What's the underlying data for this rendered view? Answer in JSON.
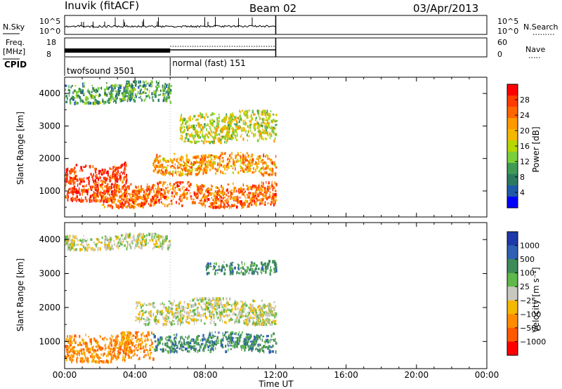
{
  "header": {
    "station": "Inuvik (fitACF)",
    "beam": "Beam 02",
    "date": "03/Apr/2013"
  },
  "noise_panel": {
    "left_label": "N.Sky",
    "right_label": "N.Search",
    "left_ticks": [
      "10^5",
      "10^0"
    ],
    "right_ticks": [
      "10^5",
      "10^0"
    ]
  },
  "freq_panel": {
    "left_label_1": "Freq.",
    "left_label_2": "[MHz]",
    "left_ticks": [
      "18",
      "8"
    ],
    "right_label": "Nave",
    "right_ticks": [
      "60",
      "0"
    ]
  },
  "cpid": {
    "label": "CPID",
    "segments": [
      {
        "name": "twofsound 3501",
        "start_hour": 0,
        "end_hour": 6
      },
      {
        "name": "normal (fast) 151",
        "start_hour": 6,
        "end_hour": 12
      }
    ]
  },
  "x_axis": {
    "label": "Time UT",
    "ticks": [
      "00:00",
      "04:00",
      "08:00",
      "12:00",
      "16:00",
      "20:00",
      "00:00"
    ]
  },
  "power_colorbar": {
    "label": "Power [dB]",
    "ticks": [
      "28",
      "24",
      "20",
      "16",
      "12",
      "8",
      "4"
    ],
    "colors": [
      "#ff0000",
      "#ff3c00",
      "#ff6600",
      "#ff9900",
      "#f5b800",
      "#b8d600",
      "#7ccf3c",
      "#3e9a54",
      "#2c7a5e",
      "#1f5aa8",
      "#0000ff"
    ]
  },
  "velocity_colorbar": {
    "label": "Velocity [m s⁻¹]",
    "ticks": [
      "1000",
      "500",
      "100",
      "25",
      "−25",
      "−100",
      "−500",
      "−1000"
    ],
    "colors": [
      "#1e3aa8",
      "#2e5fb4",
      "#3e8a5a",
      "#5fb84a",
      "#c8c8c0",
      "#f5b800",
      "#ff8c00",
      "#ff5a00",
      "#ff0000"
    ]
  },
  "chart_data": [
    {
      "type": "heatmap",
      "title": "Power",
      "xlabel": "",
      "ylabel": "Slant Range [km]",
      "xlim": [
        0,
        24
      ],
      "ylim": [
        200,
        4500
      ],
      "yticks": [
        "1000",
        "2000",
        "3000",
        "4000"
      ],
      "data_end_hour": 12,
      "bands": [
        {
          "range_km": [
            700,
            1900
          ],
          "hours": [
            0,
            3.5
          ],
          "level_db": 26
        },
        {
          "range_km": [
            500,
            1300
          ],
          "hours": [
            2,
            12
          ],
          "level_db": 24
        },
        {
          "range_km": [
            1500,
            2200
          ],
          "hours": [
            5,
            12
          ],
          "level_db": 20
        },
        {
          "range_km": [
            2500,
            3500
          ],
          "hours": [
            6.5,
            12
          ],
          "level_db": 14
        },
        {
          "range_km": [
            3700,
            4400
          ],
          "hours": [
            0,
            6
          ],
          "level_db": 10
        }
      ]
    },
    {
      "type": "heatmap",
      "title": "Velocity",
      "xlabel": "Time UT",
      "ylabel": "Slant Range [km]",
      "xlim": [
        0,
        24
      ],
      "ylim": [
        200,
        4500
      ],
      "yticks": [
        "1000",
        "2000",
        "3000",
        "4000"
      ],
      "data_end_hour": 12,
      "bands": [
        {
          "range_km": [
            400,
            1300
          ],
          "hours": [
            0,
            5
          ],
          "velocity": -150
        },
        {
          "range_km": [
            700,
            1300
          ],
          "hours": [
            5,
            12
          ],
          "velocity": 150
        },
        {
          "range_km": [
            1500,
            2300
          ],
          "hours": [
            4,
            12
          ],
          "velocity": 0
        },
        {
          "range_km": [
            3000,
            3400
          ],
          "hours": [
            8,
            12
          ],
          "velocity": 150
        },
        {
          "range_km": [
            3700,
            4200
          ],
          "hours": [
            0,
            6
          ],
          "velocity": 0
        }
      ]
    }
  ]
}
